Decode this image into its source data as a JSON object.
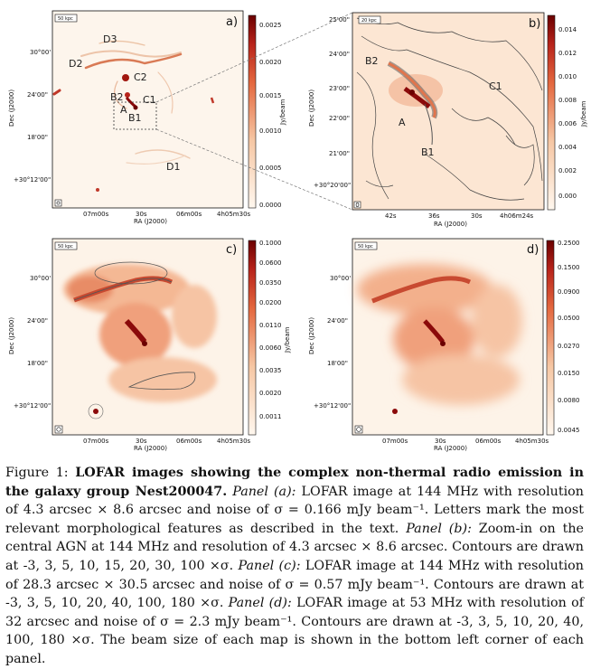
{
  "figure": {
    "panels": [
      {
        "letter": "a)",
        "scalebar": "50 kpc",
        "ra_ticks": [
          "07m00s",
          "30s",
          "06m00s",
          "4h05m30s"
        ],
        "dec_ticks": [
          "30°00'",
          "24'00\"",
          "18'00\"",
          "+30°12'00\""
        ],
        "ra_label": "RA (J2000)",
        "dec_label": "Dec (J2000)",
        "cbar_ticks": [
          "0.0025",
          "0.0020",
          "0.0015",
          "0.0010",
          "0.0005",
          "0.0000"
        ],
        "cbar_unit": "Jy/beam",
        "features": [
          "D3",
          "D2",
          "C2",
          "B2",
          "C1",
          "A",
          "B1",
          "D1"
        ]
      },
      {
        "letter": "b)",
        "scalebar": "20 kpc",
        "ra_ticks": [
          "42s",
          "36s",
          "30s",
          "4h06m24s"
        ],
        "dec_ticks": [
          "25'00\"",
          "24'00\"",
          "23'00\"",
          "22'00\"",
          "21'00\"",
          "+30°20'00\""
        ],
        "ra_label": "RA (J2000)",
        "dec_label": "Dec (J2000)",
        "cbar_ticks": [
          "0.014",
          "0.012",
          "0.010",
          "0.008",
          "0.006",
          "0.004",
          "0.002",
          "0.000"
        ],
        "cbar_unit": "Jy/beam",
        "features": [
          "B2",
          "C1",
          "A",
          "B1"
        ]
      },
      {
        "letter": "c)",
        "scalebar": "50 kpc",
        "ra_ticks": [
          "07m00s",
          "30s",
          "06m00s",
          "4h05m30s"
        ],
        "dec_ticks": [
          "30°00'",
          "24'00\"",
          "18'00\"",
          "+30°12'00\""
        ],
        "ra_label": "RA (J2000)",
        "dec_label": "Dec (J2000)",
        "cbar_ticks": [
          "0.1000",
          "0.0600",
          "0.0350",
          "0.0200",
          "0.0110",
          "0.0060",
          "0.0035",
          "0.0020",
          "0.0011"
        ],
        "cbar_unit": "Jy/beam",
        "features": []
      },
      {
        "letter": "d)",
        "scalebar": "50 kpc",
        "ra_ticks": [
          "07m00s",
          "30s",
          "06m00s",
          "4h05m30s"
        ],
        "dec_ticks": [
          "30°00'",
          "24'00\"",
          "18'00\"",
          "+30°12'00\""
        ],
        "ra_label": "RA (J2000)",
        "dec_label": "Dec (J2000)",
        "cbar_ticks": [
          "0.2500",
          "0.1500",
          "0.0900",
          "0.0500",
          "0.0270",
          "0.0150",
          "0.0080",
          "0.0045"
        ],
        "cbar_unit": "Jy/beam",
        "features": []
      }
    ]
  },
  "caption": {
    "label": "Figure 1:",
    "title": "LOFAR images showing the complex non-thermal radio emission in the galaxy group Nest200047.",
    "pa_label": "Panel (a):",
    "pa_text": "LOFAR image at 144 MHz with resolution of 4.3 arcsec × 8.6 arcsec and noise of σ = 0.166 mJy beam⁻¹. Letters mark the most relevant morphological features as described in the text.",
    "pb_label": "Panel (b):",
    "pb_text": "Zoom-in on the central AGN at 144 MHz and resolution of 4.3 arcsec × 8.6 arcsec. Contours are drawn at -3, 3, 5, 10, 15, 20, 30, 100 ×σ.",
    "pc_label": "Panel (c):",
    "pc_text": "LOFAR image at 144 MHz with resolution of 28.3 arcsec × 30.5 arcsec and noise of σ = 0.57 mJy beam⁻¹. Contours are drawn at -3, 3, 5, 10, 20, 40, 100, 180 ×σ.",
    "pd_label": "Panel (d):",
    "pd_text": "LOFAR image at 53 MHz with resolution of 32 arcsec and noise of σ = 2.3 mJy beam⁻¹. Contours are drawn at -3, 3, 5, 10, 20, 40, 100, 180 ×σ. The beam size of each map is shown in the bottom left corner of each panel."
  },
  "colors": {
    "map_bg": "#fdf3e8",
    "map_mid": "#ef9a6f",
    "map_hot": "#8b0a0a",
    "contour": "#444444"
  }
}
